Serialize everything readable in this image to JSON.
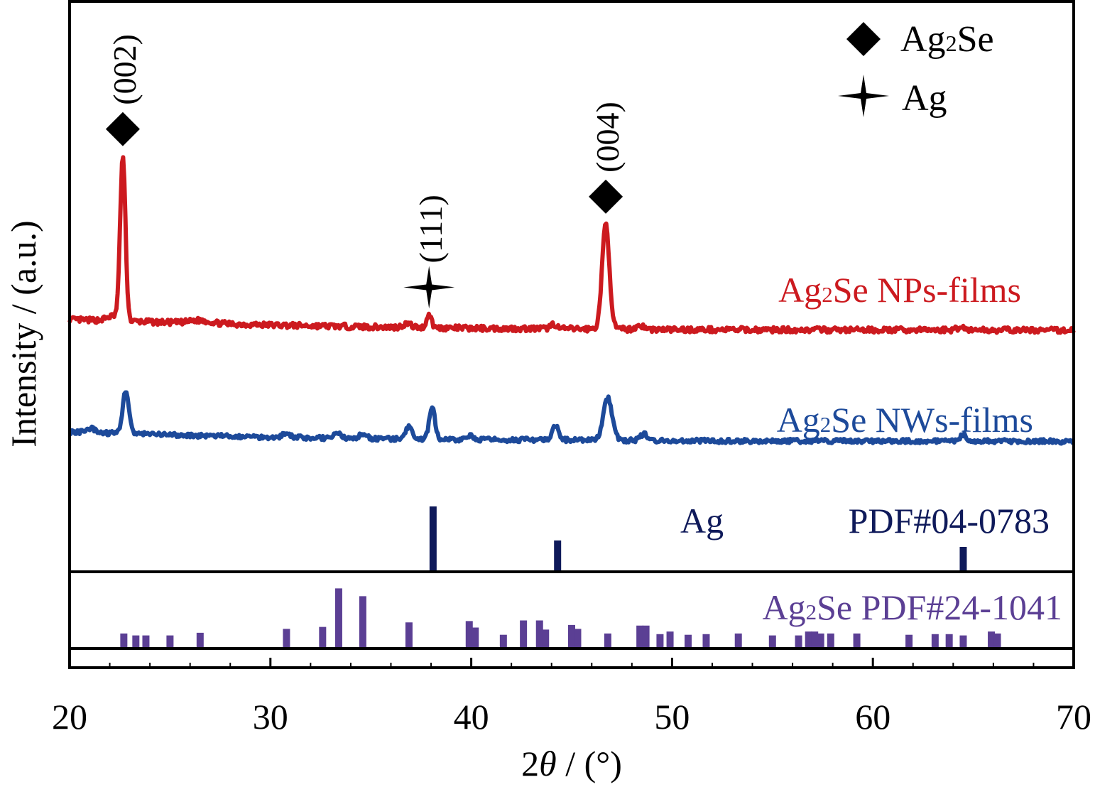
{
  "chart_data": {
    "type": "line",
    "xlabel_parts": [
      "2",
      "θ",
      " / (°)"
    ],
    "ylabel": "Intensity / (a.u.)",
    "xlim": [
      20,
      70
    ],
    "xticks": [
      20,
      30,
      40,
      50,
      60,
      70
    ],
    "yticks_labeled": false,
    "grid": false,
    "legend": {
      "position": "top-right",
      "entries": [
        {
          "marker": "diamond",
          "label_main": "Ag",
          "label_sub": "2",
          "label_tail": "Se"
        },
        {
          "marker": "four-point-star",
          "label_main": "Ag",
          "label_sub": "",
          "label_tail": ""
        }
      ]
    },
    "series": [
      {
        "label_main": "Ag",
        "label_sub": "2",
        "label_tail": "Se NPs-films",
        "color": "#cc1a1f",
        "baseline": [
          [
            20,
            1.0
          ],
          [
            25,
            0.85
          ],
          [
            30,
            0.72
          ],
          [
            35,
            0.62
          ],
          [
            40,
            0.55
          ],
          [
            45,
            0.52
          ],
          [
            50,
            0.48
          ],
          [
            55,
            0.47
          ],
          [
            60,
            0.46
          ],
          [
            65,
            0.46
          ],
          [
            70,
            0.44
          ]
        ],
        "peaks": [
          {
            "x": 22.2,
            "height": 0.25,
            "width": 0.35
          },
          {
            "x": 22.65,
            "height": 8.5,
            "width": 0.13
          },
          {
            "x": 26.5,
            "height": 0.15,
            "width": 0.5
          },
          {
            "x": 36.8,
            "height": 0.2,
            "width": 0.2
          },
          {
            "x": 37.9,
            "height": 0.7,
            "width": 0.12
          },
          {
            "x": 44.1,
            "height": 0.25,
            "width": 0.15
          },
          {
            "x": 46.7,
            "height": 5.5,
            "width": 0.18
          },
          {
            "x": 48.4,
            "height": 0.2,
            "width": 0.2
          },
          {
            "x": 64.4,
            "height": 0.15,
            "width": 0.2
          }
        ]
      },
      {
        "label_main": "Ag",
        "label_sub": "2",
        "label_tail": "Se NWs-films",
        "color": "#1d4a9a",
        "baseline": [
          [
            20,
            1.0
          ],
          [
            25,
            0.8
          ],
          [
            30,
            0.66
          ],
          [
            35,
            0.56
          ],
          [
            40,
            0.5
          ],
          [
            45,
            0.48
          ],
          [
            50,
            0.43
          ],
          [
            55,
            0.42
          ],
          [
            60,
            0.41
          ],
          [
            65,
            0.4
          ],
          [
            70,
            0.39
          ]
        ],
        "peaks": [
          {
            "x": 21.1,
            "height": 0.25,
            "width": 0.2
          },
          {
            "x": 22.8,
            "height": 2.8,
            "width": 0.15
          },
          {
            "x": 30.8,
            "height": 0.25,
            "width": 0.2
          },
          {
            "x": 33.3,
            "height": 0.3,
            "width": 0.2
          },
          {
            "x": 34.6,
            "height": 0.25,
            "width": 0.2
          },
          {
            "x": 36.9,
            "height": 0.8,
            "width": 0.15
          },
          {
            "x": 38.05,
            "height": 2.1,
            "width": 0.14
          },
          {
            "x": 40.0,
            "height": 0.25,
            "width": 0.15
          },
          {
            "x": 44.2,
            "height": 0.9,
            "width": 0.15
          },
          {
            "x": 46.8,
            "height": 2.7,
            "width": 0.22
          },
          {
            "x": 48.6,
            "height": 0.4,
            "width": 0.2
          },
          {
            "x": 64.5,
            "height": 0.45,
            "width": 0.15
          }
        ]
      }
    ],
    "reference_patterns": [
      {
        "label_main": "Ag",
        "label_sub": "",
        "label_tail": "",
        "label_pdf": "PDF#04-0783",
        "color": "#0f1a5a",
        "lines": [
          [
            38.1,
            100
          ],
          [
            44.3,
            48
          ],
          [
            64.5,
            38
          ]
        ]
      },
      {
        "label_main": "Ag",
        "label_sub": "2",
        "label_tail": "Se PDF#24-1041",
        "label_pdf": "",
        "color": "#5b3f94",
        "lines": [
          [
            22.7,
            23
          ],
          [
            23.3,
            20
          ],
          [
            23.8,
            20
          ],
          [
            25.0,
            20
          ],
          [
            26.5,
            24
          ],
          [
            30.8,
            30
          ],
          [
            32.6,
            33
          ],
          [
            33.4,
            92
          ],
          [
            34.6,
            80
          ],
          [
            36.9,
            40
          ],
          [
            39.9,
            42
          ],
          [
            40.2,
            32
          ],
          [
            41.6,
            21
          ],
          [
            42.6,
            43
          ],
          [
            43.4,
            43
          ],
          [
            43.7,
            29
          ],
          [
            45.0,
            36
          ],
          [
            45.3,
            30
          ],
          [
            46.8,
            23
          ],
          [
            48.4,
            35
          ],
          [
            48.7,
            35
          ],
          [
            49.4,
            22
          ],
          [
            49.9,
            26
          ],
          [
            50.8,
            21
          ],
          [
            51.7,
            22
          ],
          [
            53.3,
            23
          ],
          [
            55.0,
            20
          ],
          [
            56.3,
            20
          ],
          [
            56.8,
            26
          ],
          [
            57.1,
            26
          ],
          [
            57.4,
            23
          ],
          [
            57.9,
            23
          ],
          [
            59.2,
            23
          ],
          [
            61.8,
            21
          ],
          [
            63.1,
            22
          ],
          [
            63.8,
            22
          ],
          [
            64.5,
            20
          ],
          [
            65.9,
            26
          ],
          [
            66.2,
            23
          ]
        ]
      }
    ],
    "annotations": [
      {
        "text": "(002)",
        "x": 22.65,
        "series": 0,
        "marker": "diamond"
      },
      {
        "text": "(111)",
        "x": 37.9,
        "series": 0,
        "marker": "four-point-star"
      },
      {
        "text": "(004)",
        "x": 46.7,
        "series": 0,
        "marker": "diamond"
      }
    ]
  }
}
